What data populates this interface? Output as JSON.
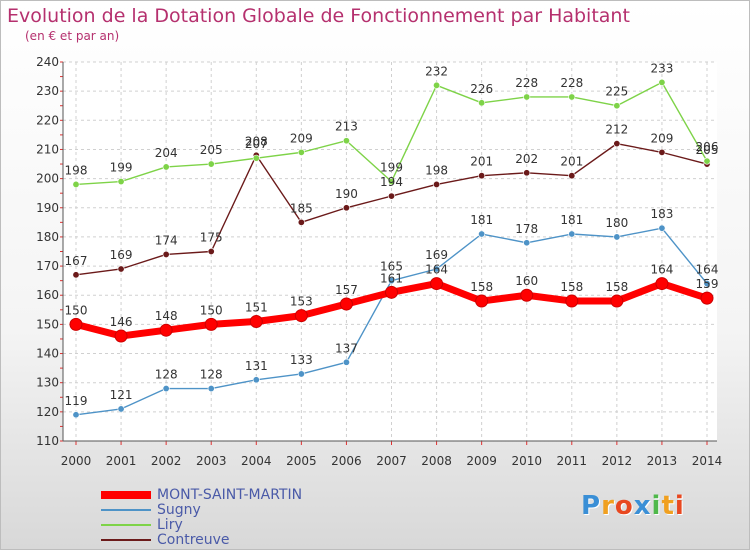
{
  "chart_data": {
    "type": "line",
    "title": "Evolution de la Dotation Globale de Fonctionnement par Habitant",
    "subtitle": "(en € et par an)",
    "x": [
      "2000",
      "2001",
      "2002",
      "2003",
      "2004",
      "2005",
      "2006",
      "2007",
      "2008",
      "2009",
      "2010",
      "2011",
      "2012",
      "2013",
      "2014"
    ],
    "y_ticks": [
      "110",
      "120",
      "130",
      "140",
      "150",
      "160",
      "170",
      "180",
      "190",
      "200",
      "210",
      "220",
      "230",
      "240"
    ],
    "ylim": [
      110,
      240
    ],
    "grid": true,
    "legend_position": "bottom-left",
    "series": [
      {
        "name": "MONT-SAINT-MARTIN",
        "color": "#ff0000",
        "values": [
          150,
          146,
          148,
          150,
          151,
          153,
          157,
          161,
          164,
          158,
          160,
          158,
          158,
          164,
          159
        ],
        "labels": [
          "150",
          "146",
          "148",
          "150",
          "151",
          "153",
          "157",
          "161",
          "164",
          "158",
          "160",
          "158",
          "158",
          "164",
          "159"
        ]
      },
      {
        "name": "Sugny",
        "color": "#4e93c7",
        "values": [
          119,
          121,
          128,
          128,
          131,
          133,
          137,
          165,
          169,
          181,
          178,
          181,
          180,
          183,
          164
        ],
        "labels": [
          "119",
          "121",
          "128",
          "128",
          "131",
          "133",
          "137",
          "165",
          "169",
          "181",
          "178",
          "181",
          "180",
          "183",
          "164"
        ]
      },
      {
        "name": "Liry",
        "color": "#7ed348",
        "values": [
          198,
          199,
          204,
          205,
          207,
          209,
          213,
          199,
          232,
          226,
          228,
          228,
          225,
          233,
          206
        ],
        "labels": [
          "198",
          "199",
          "204",
          "205",
          "207",
          "209",
          "213",
          "199",
          "232",
          "226",
          "228",
          "228",
          "225",
          "233",
          "206"
        ]
      },
      {
        "name": "Contreuve",
        "color": "#6b1a1a",
        "values": [
          167,
          169,
          174,
          175,
          208,
          185,
          190,
          194,
          198,
          201,
          202,
          201,
          212,
          209,
          205
        ],
        "labels": [
          "167",
          "169",
          "174",
          "175",
          "208",
          "185",
          "190",
          "194",
          "198",
          "201",
          "202",
          "201",
          "212",
          "209",
          "205"
        ]
      }
    ]
  },
  "logo": {
    "letters": [
      "P",
      "r",
      "o",
      "x",
      "i",
      "t",
      "i"
    ],
    "colors": [
      "#3a8fd6",
      "#f0a020",
      "#e84820",
      "#3a8fd6",
      "#4fb84a",
      "#f0a020",
      "#e84820"
    ]
  }
}
